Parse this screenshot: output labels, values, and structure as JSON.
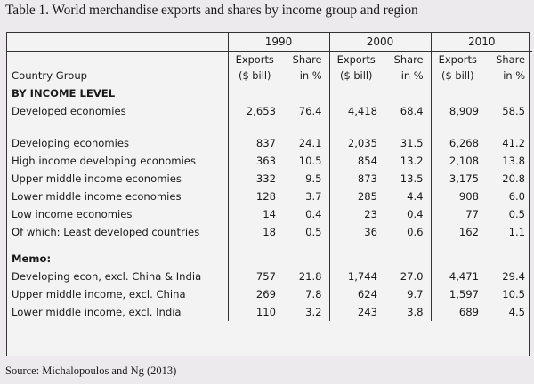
{
  "caption": "Table 1. World merchandise exports and shares by income group and region",
  "source": "Source: Michalopoulos and Ng (2013)",
  "headers": {
    "country_group": "Country Group",
    "years": [
      "1990",
      "2000",
      "2010"
    ],
    "exports_line1": "Exports",
    "exports_line2": "($ bill)",
    "share_line1": "Share",
    "share_line2": "in %"
  },
  "sections": {
    "income": "BY INCOME LEVEL",
    "memo": "Memo:"
  },
  "rows": [
    {
      "name": "Developed economies",
      "v": [
        "2,653",
        "76.4",
        "4,418",
        "68.4",
        "8,909",
        "58.5"
      ]
    },
    {
      "name": "Developing economies",
      "v": [
        "837",
        "24.1",
        "2,035",
        "31.5",
        "6,268",
        "41.2"
      ]
    },
    {
      "name": "High income developing economies",
      "v": [
        "363",
        "10.5",
        "854",
        "13.2",
        "2,108",
        "13.8"
      ]
    },
    {
      "name": "Upper middle income economies",
      "v": [
        "332",
        "9.5",
        "873",
        "13.5",
        "3,175",
        "20.8"
      ]
    },
    {
      "name": "Lower middle income economies",
      "v": [
        "128",
        "3.7",
        "285",
        "4.4",
        "908",
        "6.0"
      ]
    },
    {
      "name": "Low income economies",
      "v": [
        "14",
        "0.4",
        "23",
        "0.4",
        "77",
        "0.5"
      ]
    },
    {
      "name": "Of which: Least developed countries",
      "v": [
        "18",
        "0.5",
        "36",
        "0.6",
        "162",
        "1.1"
      ]
    },
    {
      "name": "Developing econ, excl. China & India",
      "v": [
        "757",
        "21.8",
        "1,744",
        "27.0",
        "4,471",
        "29.4"
      ]
    },
    {
      "name": "Upper middle income, excl. China",
      "v": [
        "269",
        "7.8",
        "624",
        "9.7",
        "1,597",
        "10.5"
      ]
    },
    {
      "name": "Lower middle income, excl. India",
      "v": [
        "110",
        "3.2",
        "243",
        "3.8",
        "689",
        "4.5"
      ]
    }
  ]
}
